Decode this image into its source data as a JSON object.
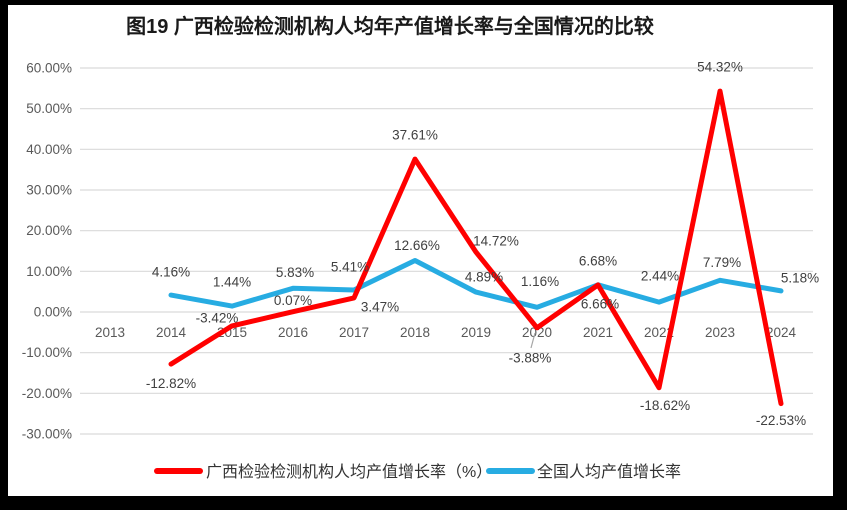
{
  "title": "图19 广西检验检测机构人均年产值增长率与全国情况的比较",
  "colors": {
    "guangxi_series": "#FF0000",
    "national_series": "#27ACE2",
    "gridline": "#D9D9D9",
    "axis_text": "#595959",
    "data_label_text": "#404040",
    "leader_line": "#A6A6A6",
    "frame": "#000000",
    "background": "#FFFFFF"
  },
  "chart_data": {
    "type": "line",
    "title": "图19 广西检验检测机构人均年产值增长率与全国情况的比较",
    "categories": [
      "2013",
      "2014",
      "2015",
      "2016",
      "2017",
      "2018",
      "2019",
      "2020",
      "2021",
      "2022",
      "2023",
      "2024"
    ],
    "series": [
      {
        "name": "广西检验检测机构人均产值增长率（%）",
        "color": "#FF0000",
        "values": [
          null,
          -12.82,
          -3.42,
          0.07,
          3.47,
          37.61,
          14.72,
          -3.88,
          6.66,
          -18.62,
          54.32,
          -22.53
        ],
        "labels": [
          null,
          "-12.82%",
          "-3.42%",
          "0.07%",
          "3.47%",
          "37.61%",
          "14.72%",
          "-3.88%",
          "6.66%",
          "-18.62%",
          "54.32%",
          "-22.53%"
        ]
      },
      {
        "name": "全国人均产值增长率",
        "color": "#27ACE2",
        "values": [
          null,
          4.16,
          1.44,
          5.83,
          5.41,
          12.66,
          4.89,
          1.16,
          6.68,
          2.44,
          7.79,
          5.18
        ],
        "labels": [
          null,
          "4.16%",
          "1.44%",
          "5.83%",
          "5.41%",
          "12.66%",
          "4.89%",
          "1.16%",
          "6.68%",
          "2.44%",
          "7.79%",
          "5.18%"
        ]
      }
    ],
    "y_axis": {
      "tick_labels": [
        "60.00%",
        "50.00%",
        "40.00%",
        "30.00%",
        "20.00%",
        "10.00%",
        "0.00%",
        "-10.00%",
        "-20.00%",
        "-30.00%"
      ],
      "tick_values": [
        60,
        50,
        40,
        30,
        20,
        10,
        0,
        -10,
        -20,
        -30
      ],
      "min": -30,
      "max": 60,
      "step": 10
    },
    "grid": true,
    "legend_position": "bottom",
    "x_label_position": "next-to-zero-axis"
  },
  "legend": {
    "items": [
      {
        "label": "广西检验检测机构人均产值增长率（%）",
        "color": "#FF0000"
      },
      {
        "label": "全国人均产值增长率",
        "color": "#27ACE2"
      }
    ]
  }
}
